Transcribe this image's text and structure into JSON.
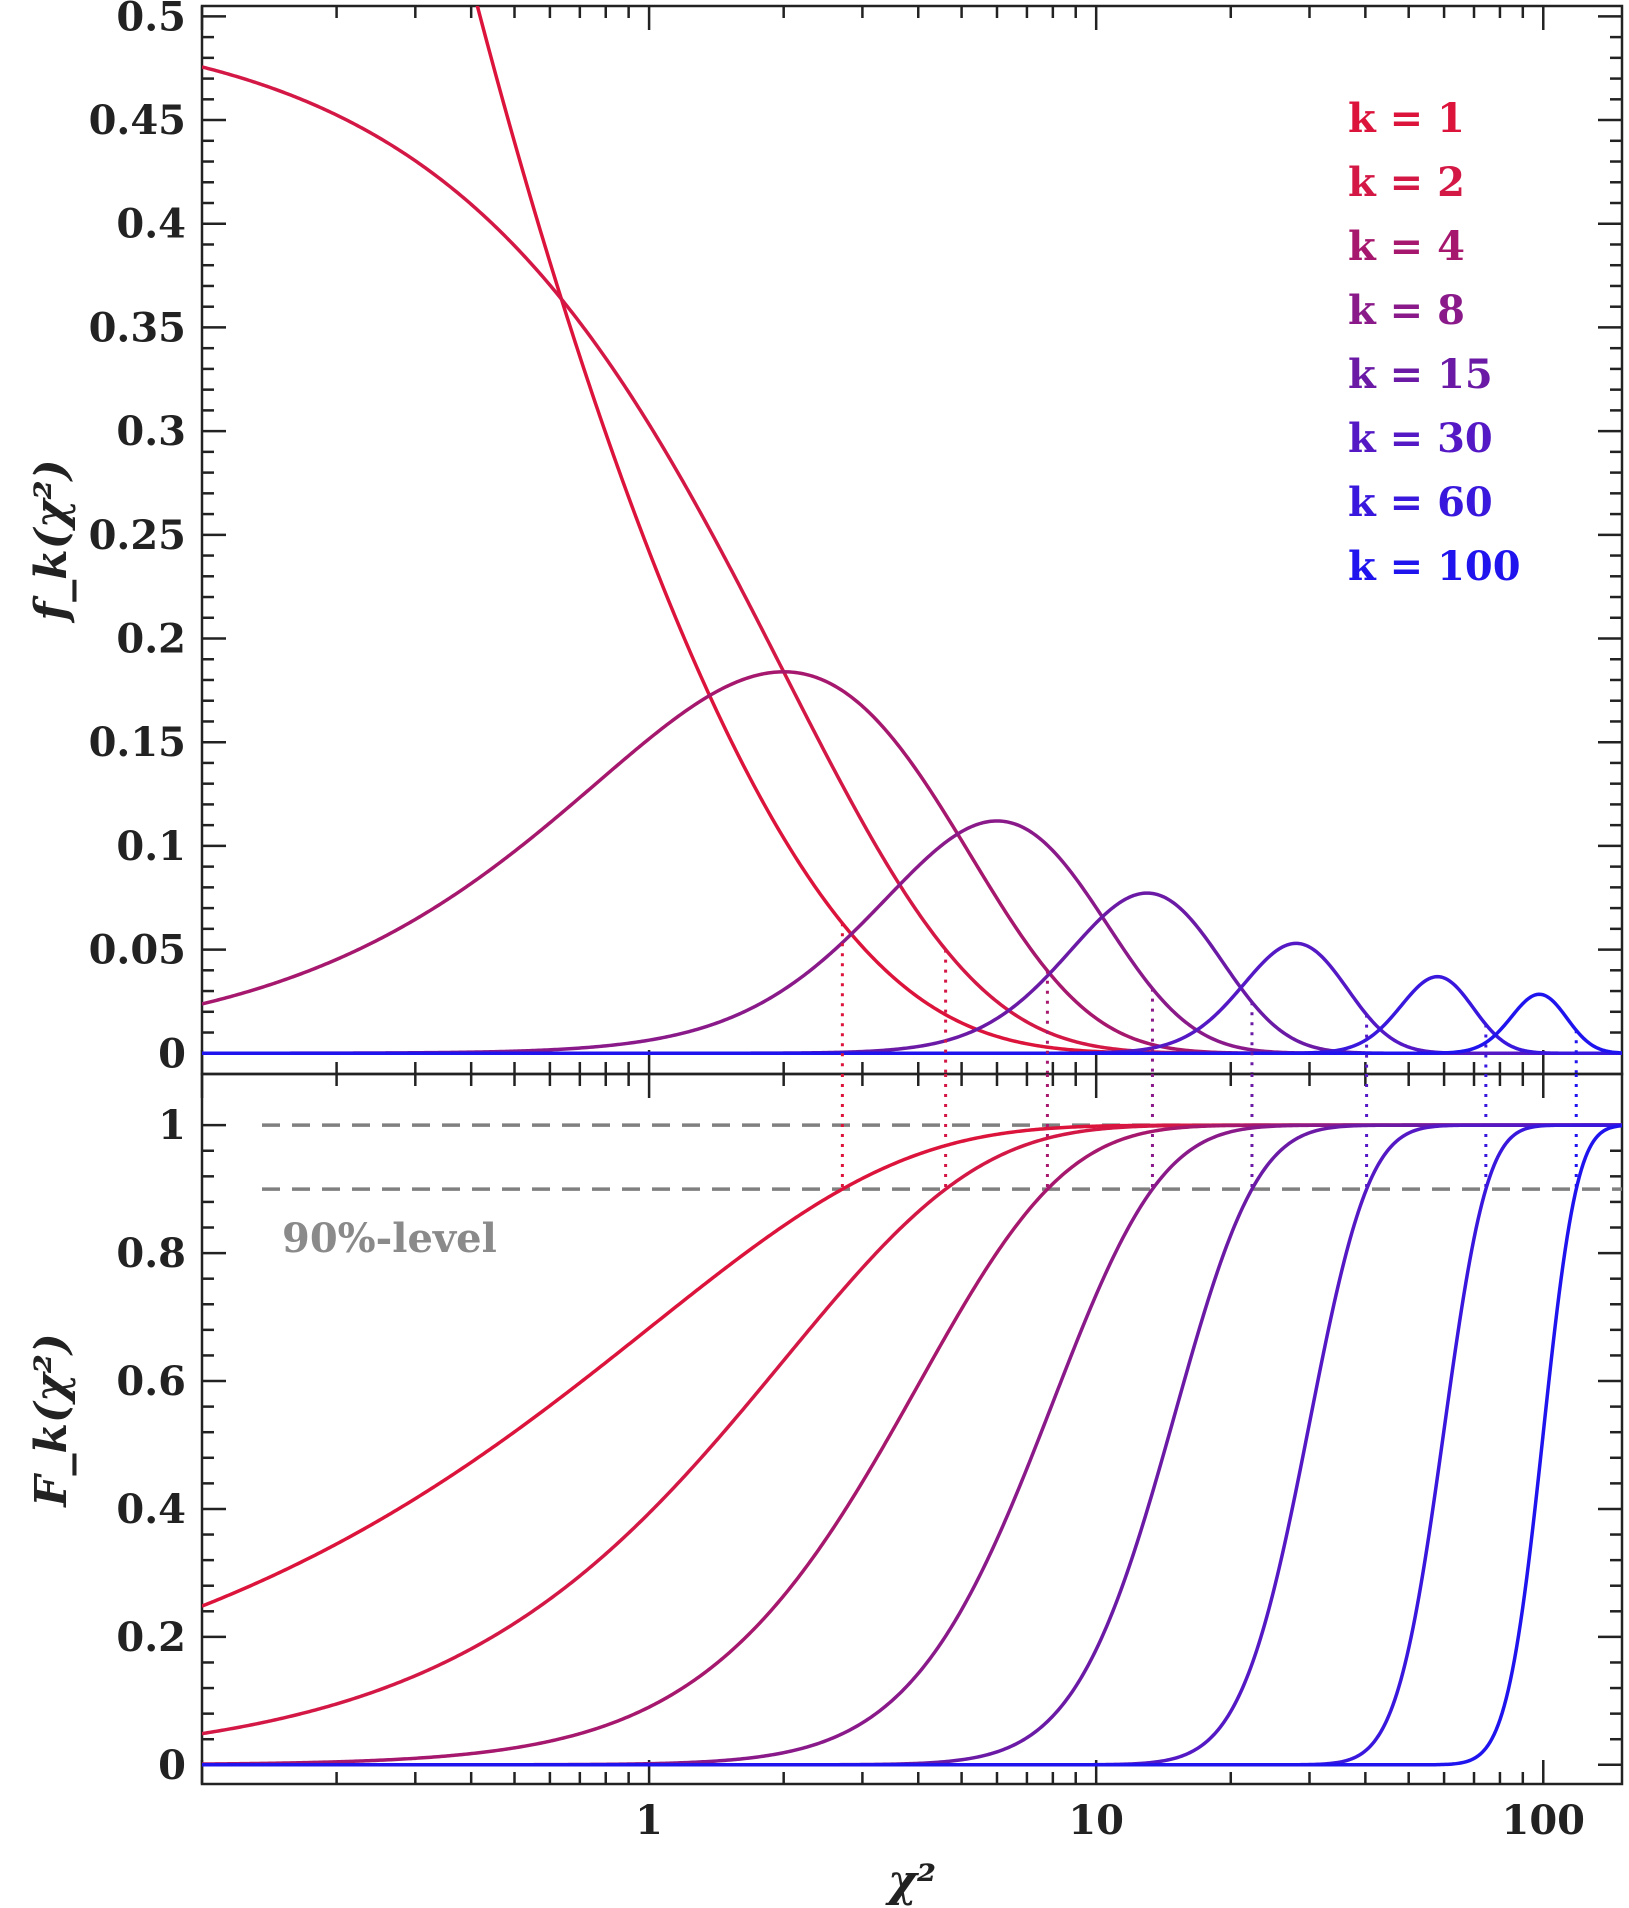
{
  "chart_data": [
    {
      "type": "line",
      "panel": "pdf",
      "ylabel": "f_k(χ²)",
      "xscale": "log",
      "xlim": [
        0.1,
        150
      ],
      "ylim": [
        -0.01,
        0.505
      ],
      "yticks": [
        "0",
        "0.05",
        "0.1",
        "0.15",
        "0.2",
        "0.25",
        "0.3",
        "0.35",
        "0.4",
        "0.45",
        "0.5"
      ],
      "series": [
        {
          "name": "k = 1",
          "k": 1,
          "color": "#dc143c"
        },
        {
          "name": "k = 2",
          "k": 2,
          "color": "#d41846"
        },
        {
          "name": "k = 4",
          "k": 4,
          "color": "#a6186e"
        },
        {
          "name": "k = 8",
          "k": 8,
          "color": "#8a1a8a"
        },
        {
          "name": "k = 15",
          "k": 15,
          "color": "#6b1aa6"
        },
        {
          "name": "k = 30",
          "k": 30,
          "color": "#5419c4"
        },
        {
          "name": "k = 60",
          "k": 60,
          "color": "#3a17dc"
        },
        {
          "name": "k = 100",
          "k": 100,
          "color": "#1f14ee"
        }
      ],
      "legend": "top-right"
    },
    {
      "type": "line",
      "panel": "cdf",
      "ylabel": "F_k(χ²)",
      "xlabel": "χ²",
      "xscale": "log",
      "xlim": [
        0.1,
        150
      ],
      "ylim": [
        -0.03,
        1.08
      ],
      "yticks": [
        "0",
        "0.2",
        "0.4",
        "0.6",
        "0.8",
        "1"
      ],
      "xticks": [
        "1",
        "10",
        "100"
      ],
      "reference_lines": [
        1.0,
        0.9
      ],
      "annotation": "90%-level",
      "quantile_90": [
        {
          "k": 1,
          "x": 2.706
        },
        {
          "k": 2,
          "x": 4.605
        },
        {
          "k": 4,
          "x": 7.779
        },
        {
          "k": 8,
          "x": 13.362
        },
        {
          "k": 15,
          "x": 22.307
        },
        {
          "k": 30,
          "x": 40.256
        },
        {
          "k": 60,
          "x": 74.397
        },
        {
          "k": 100,
          "x": 118.498
        }
      ]
    }
  ]
}
